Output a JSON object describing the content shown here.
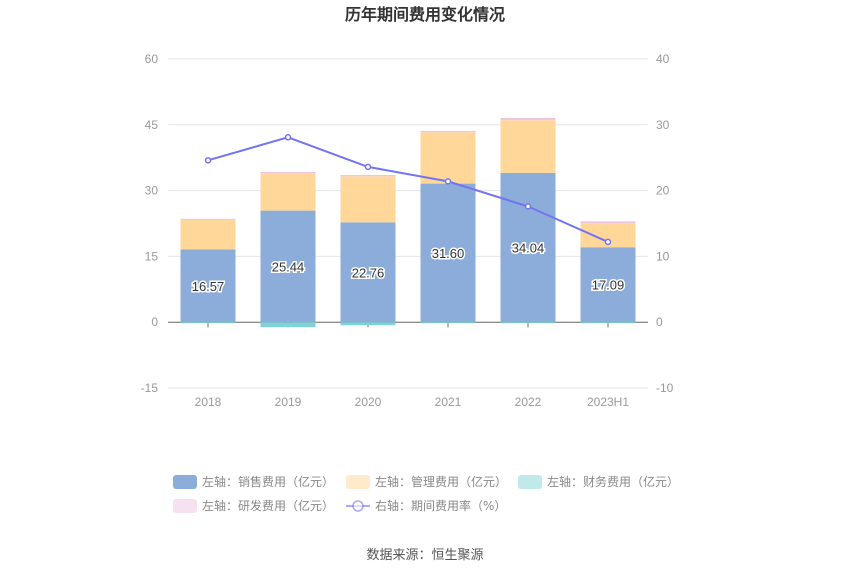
{
  "chart_data": {
    "type": "bar",
    "title": "历年期间费用变化情况",
    "categories": [
      "2018",
      "2019",
      "2020",
      "2021",
      "2022",
      "2023H1"
    ],
    "left_axis": {
      "ylim": [
        -15,
        60
      ],
      "ticks": [
        "-15",
        "0",
        "15",
        "30",
        "45",
        "60"
      ]
    },
    "right_axis": {
      "ylim": [
        -10,
        40
      ],
      "ticks": [
        "-10",
        "0",
        "10",
        "20",
        "30",
        "40"
      ]
    },
    "series": [
      {
        "name": "左轴：销售费用（亿元）",
        "axis": "left",
        "type": "bar",
        "color": "#8cacd9",
        "values": [
          16.57,
          25.44,
          22.76,
          31.6,
          34.04,
          17.09
        ],
        "labels": [
          "16.57",
          "25.44",
          "22.76",
          "31.60",
          "34.04",
          "17.09"
        ]
      },
      {
        "name": "左轴：管理费用（亿元）",
        "axis": "left",
        "type": "bar",
        "color": "#ffd899",
        "values": [
          6.9,
          8.5,
          10.5,
          11.7,
          12.0,
          5.5
        ]
      },
      {
        "name": "左轴：财务费用（亿元）",
        "axis": "left",
        "type": "bar",
        "color": "#7fd3d6",
        "values": [
          -0.2,
          -1.1,
          -0.7,
          -0.2,
          -0.2,
          -0.1
        ]
      },
      {
        "name": "左轴：研发费用（亿元）",
        "axis": "left",
        "type": "bar",
        "color": "#efc3e3",
        "values": [
          0.1,
          0.3,
          0.3,
          0.3,
          0.5,
          0.4
        ]
      },
      {
        "name": "右轴：期间费用率（%）",
        "axis": "right",
        "type": "line",
        "color": "#7474f0",
        "values": [
          24.6,
          28.1,
          23.6,
          21.4,
          17.6,
          12.2
        ]
      }
    ],
    "legend_position": "bottom",
    "source": "数据来源：恒生聚源"
  }
}
